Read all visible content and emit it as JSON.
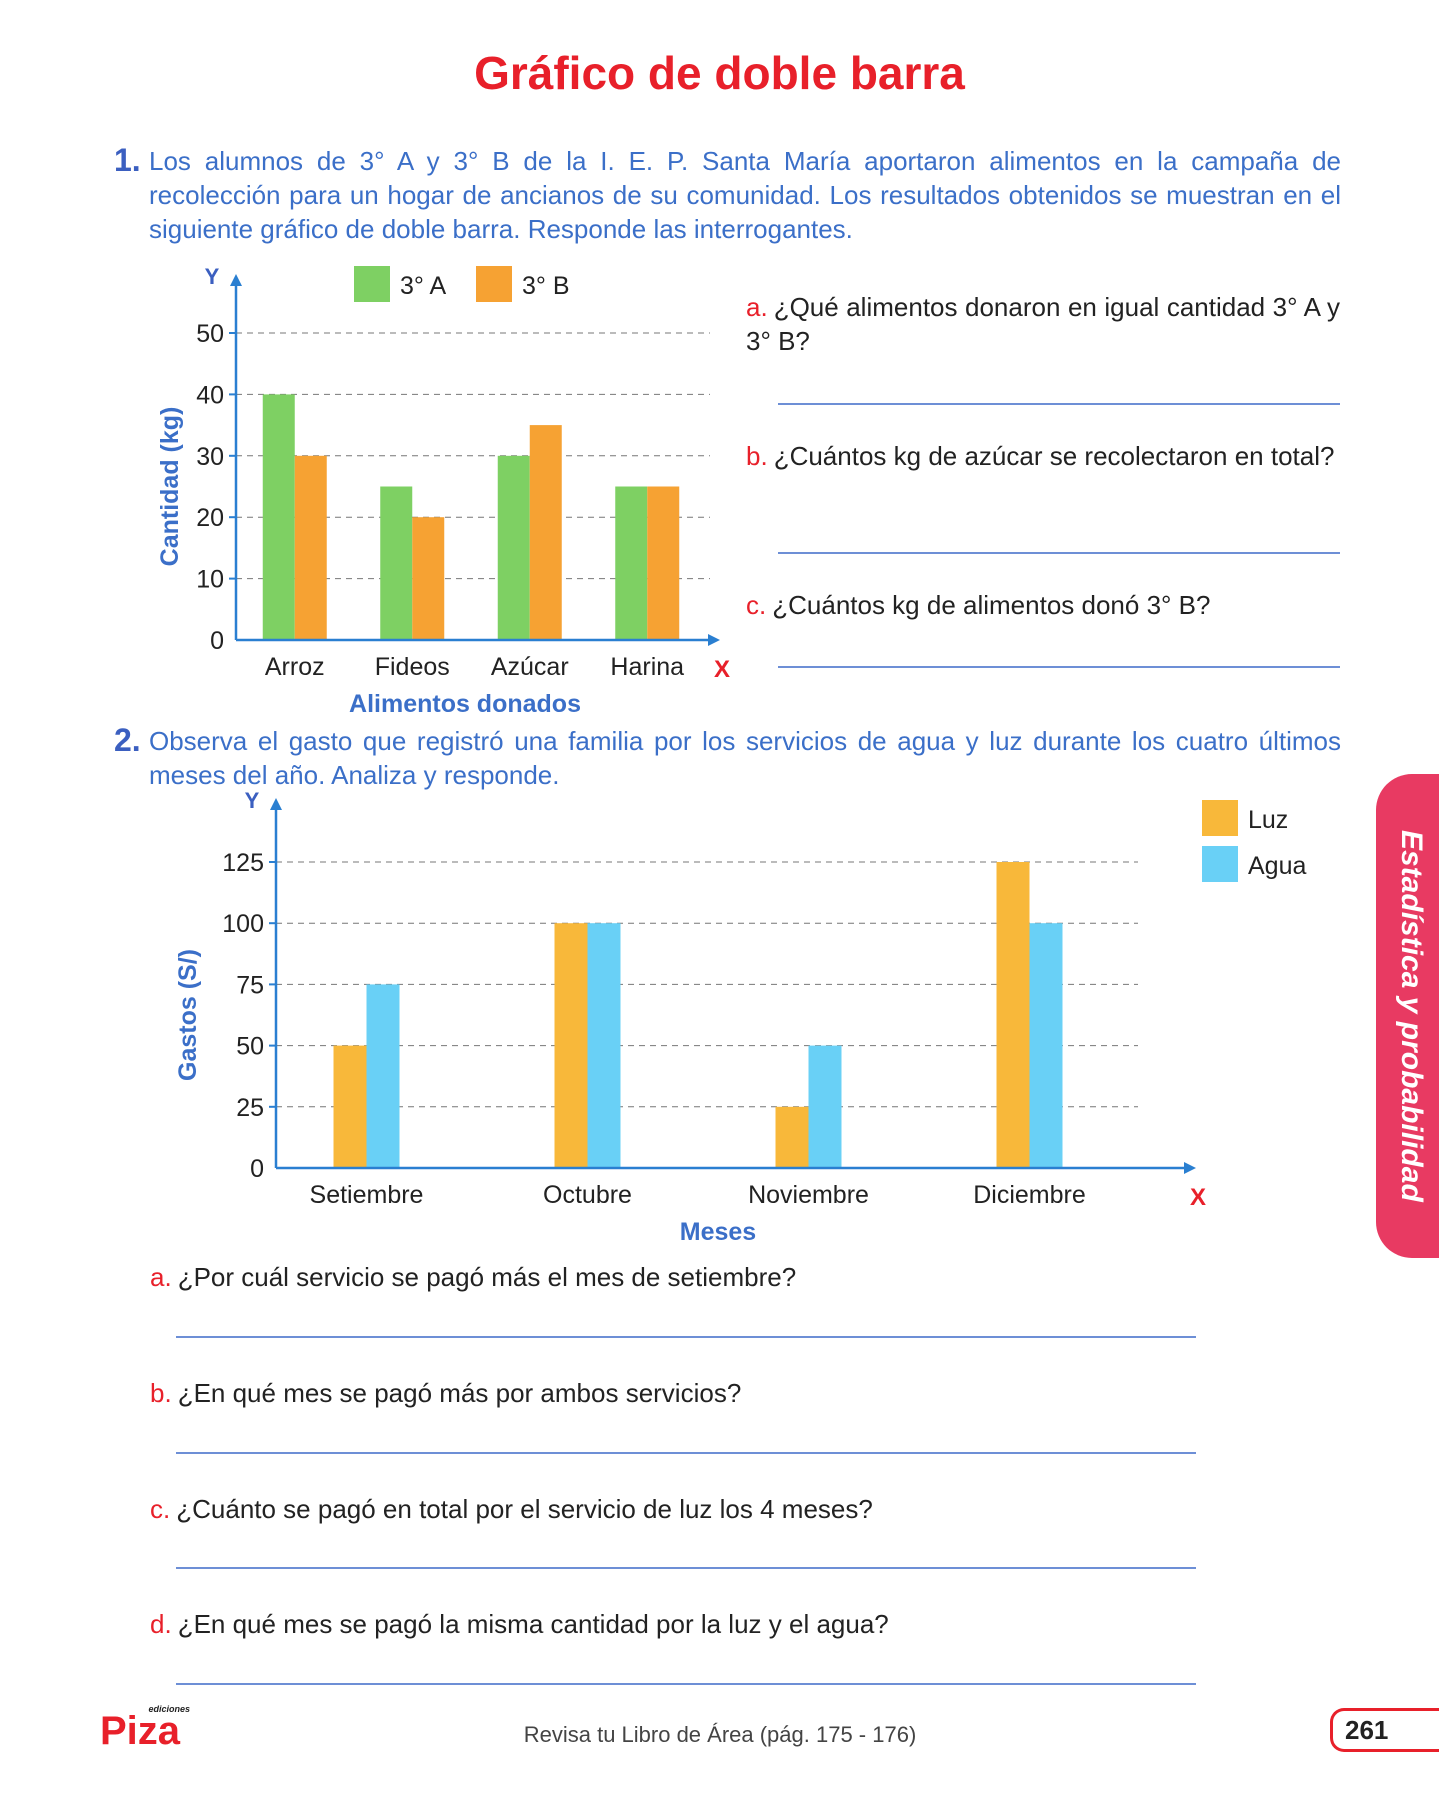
{
  "title": "Gráfico de doble barra",
  "q1": {
    "number": "1.",
    "text": "Los alumnos de 3° A y 3° B de la I. E. P. Santa María aportaron alimentos en la campaña de recolección para un hogar de ancianos de su comunidad. Los resultados obtenidos se muestran en el siguiente gráfico de doble barra. Responde las interrogantes.",
    "questions": [
      {
        "letter": "a.",
        "text": "¿Qué alimentos donaron en igual cantidad 3° A y 3° B?"
      },
      {
        "letter": "b.",
        "text": "¿Cuántos kg de azúcar se recolectaron en total?"
      },
      {
        "letter": "c.",
        "text": "¿Cuántos kg de alimentos donó 3° B?"
      }
    ]
  },
  "q2": {
    "number": "2.",
    "text": "Observa el gasto que registró una familia por los servicios de agua y luz durante los cuatro últimos meses del año. Analiza y responde.",
    "questions": [
      {
        "letter": "a.",
        "text": "¿Por cuál servicio se pagó más el mes de setiembre?"
      },
      {
        "letter": "b.",
        "text": "¿En qué mes se pagó más por ambos servicios?"
      },
      {
        "letter": "c.",
        "text": "¿Cuánto se pagó en total por el servicio de luz los 4 meses?"
      },
      {
        "letter": "d.",
        "text": "¿En qué mes se pagó la misma cantidad por la luz y el agua?"
      }
    ]
  },
  "side_tab": "Estadística y probabilidad",
  "footer": {
    "text": "Revisa tu Libro de Área (pág. 175 - 176)",
    "page_number": "261",
    "logo_small": "ediciones",
    "logo_main": "Piza"
  },
  "chart_data": [
    {
      "type": "bar",
      "categories": [
        "Arroz",
        "Fideos",
        "Azúcar",
        "Harina"
      ],
      "series": [
        {
          "name": "3° A",
          "values": [
            40,
            25,
            30,
            25
          ],
          "color": "#7ed063"
        },
        {
          "name": "3° B",
          "values": [
            30,
            20,
            35,
            25
          ],
          "color": "#f6a233"
        }
      ],
      "xlabel": "Alimentos donados",
      "ylabel": "Cantidad (kg)",
      "x_axis_letter": "X",
      "y_axis_letter": "Y",
      "yticks": [
        0,
        10,
        20,
        30,
        40,
        50
      ],
      "ylim": [
        0,
        50
      ],
      "grid": true,
      "legend": "top"
    },
    {
      "type": "bar",
      "categories": [
        "Setiembre",
        "Octubre",
        "Noviembre",
        "Diciembre"
      ],
      "series": [
        {
          "name": "Luz",
          "values": [
            50,
            100,
            25,
            125
          ],
          "color": "#f8b83a"
        },
        {
          "name": "Agua",
          "values": [
            75,
            100,
            50,
            100
          ],
          "color": "#69d0f6"
        }
      ],
      "xlabel": "Meses",
      "ylabel": "Gastos (S/)",
      "x_axis_letter": "X",
      "y_axis_letter": "Y",
      "yticks": [
        0,
        25,
        50,
        75,
        100,
        125
      ],
      "ylim": [
        0,
        125
      ],
      "grid": true,
      "legend": "top-right"
    }
  ]
}
